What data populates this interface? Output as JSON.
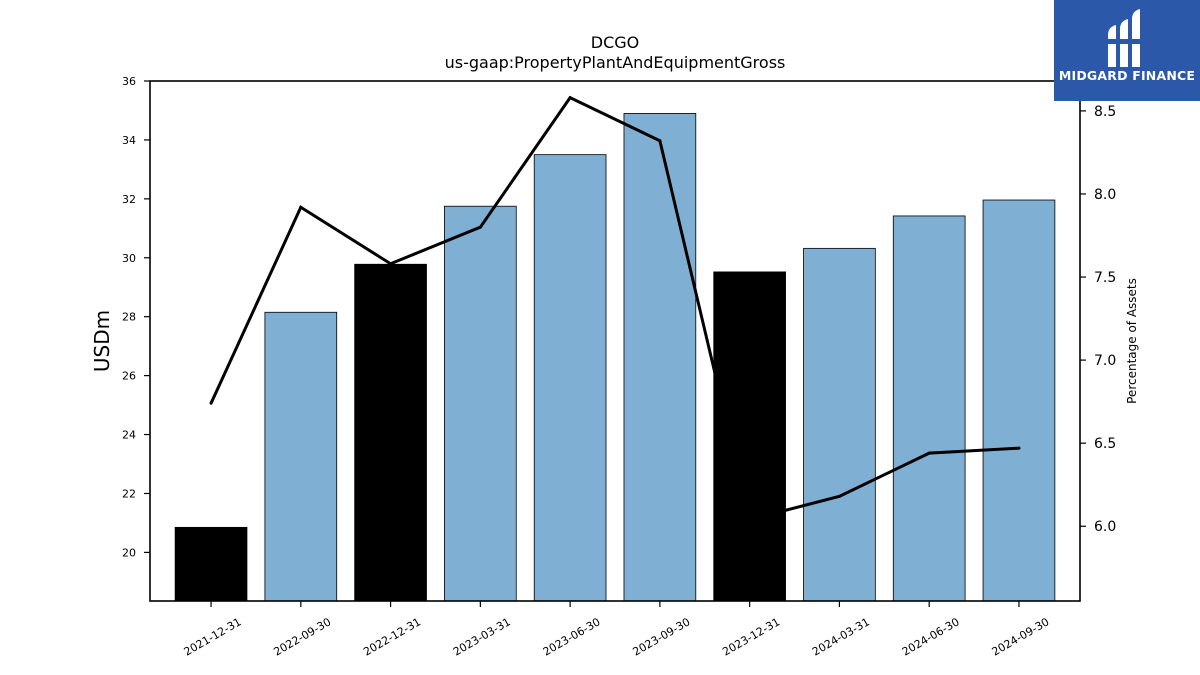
{
  "chart_data": {
    "type": "bar",
    "title": "DCGO",
    "subtitle": "us-gaap:PropertyPlantAndEquipmentGross",
    "ylabel": "USDm",
    "y2label": "Percentage of Assets",
    "ylim": [
      18.35,
      36.0
    ],
    "y2lim": [
      5.55,
      8.68
    ],
    "yticks": [
      20,
      22,
      24,
      26,
      28,
      30,
      32,
      34,
      36
    ],
    "y2ticks": [
      6.0,
      6.5,
      7.0,
      7.5,
      8.0,
      8.5
    ],
    "categories": [
      "2021-12-31",
      "2022-09-30",
      "2022-12-31",
      "2023-03-31",
      "2023-06-30",
      "2023-09-30",
      "2023-12-31",
      "2024-03-31",
      "2024-06-30",
      "2024-09-30"
    ],
    "series": [
      {
        "kind": "bar",
        "values": [
          20.85,
          28.15,
          29.78,
          31.75,
          33.5,
          34.9,
          29.52,
          30.32,
          31.42,
          31.96
        ],
        "bar_colors": [
          "#000000",
          "#7fafd3",
          "#000000",
          "#7fafd3",
          "#7fafd3",
          "#7fafd3",
          "#000000",
          "#7fafd3",
          "#7fafd3",
          "#7fafd3"
        ]
      },
      {
        "kind": "line",
        "axis": "right",
        "color": "#000000",
        "values": [
          6.74,
          7.92,
          7.58,
          7.8,
          8.58,
          8.32,
          6.04,
          6.18,
          6.44,
          6.47
        ]
      }
    ],
    "grid": false
  },
  "logo": {
    "text": "MIDGARD FINANCE",
    "background": "#2b58a8"
  }
}
